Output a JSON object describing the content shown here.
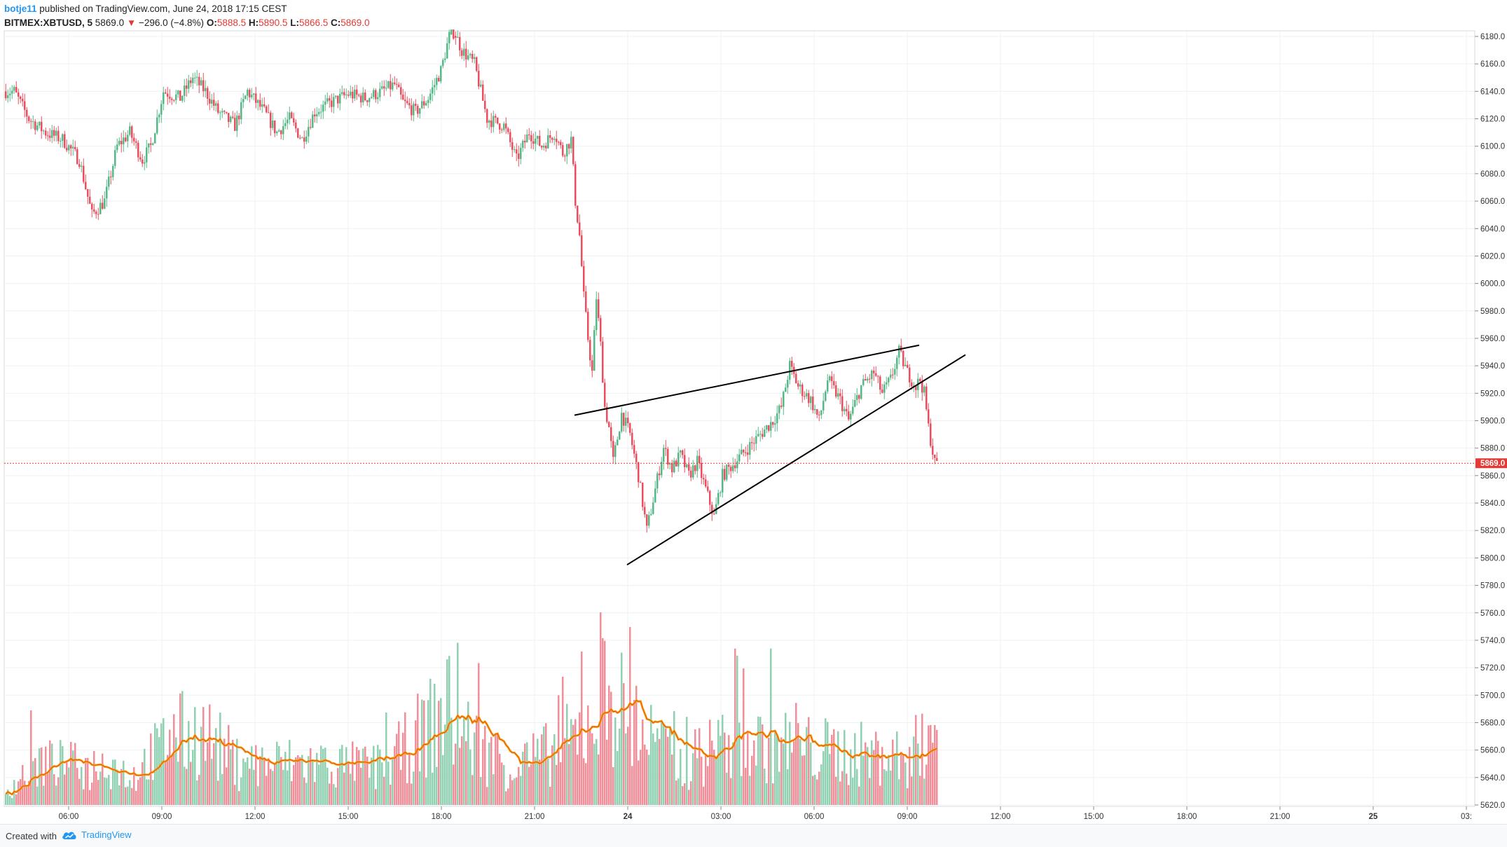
{
  "header": {
    "author": "botje11",
    "published_text": "published on TradingView.com, June 24, 2018 17:15 CEST",
    "symbol": "BITMEX:XBTUSD, 5",
    "last": "5869.0",
    "change_arrow": "▼",
    "change": "−296.0 (−4.8%)",
    "o_label": "O:",
    "o_value": "5888.5",
    "h_label": "H:",
    "h_value": "5890.5",
    "l_label": "L:",
    "l_value": "5866.5",
    "c_label": "C:",
    "c_value": "5869.0"
  },
  "footer": {
    "created_with": "Created with",
    "brand": "TradingView"
  },
  "colors": {
    "up": "#53b987",
    "down": "#eb4d5c",
    "volume_up": "#8fd1b1",
    "volume_down": "#f08f99",
    "ma_outer": "#f5a623",
    "ma_inner": "#e65100",
    "grid": "#eef0f3",
    "trendline": "#000000",
    "last_price_line": "#e53935",
    "brand": "#2196f3"
  },
  "chart_data": {
    "type": "candlestick",
    "symbol": "BITMEX:XBTUSD",
    "interval": "5",
    "ylim": [
      5615,
      6185
    ],
    "x_ticks": [
      "06:00",
      "09:00",
      "12:00",
      "15:00",
      "18:00",
      "21:00",
      "24",
      "03:00",
      "06:00",
      "09:00",
      "12:00",
      "15:00",
      "18:00",
      "21:00",
      "25",
      "03:"
    ],
    "y_ticks": [
      6180,
      6160,
      6140,
      6120,
      6100,
      6080,
      6060,
      6040,
      6020,
      6000,
      5980,
      5960,
      5940,
      5920,
      5900,
      5880,
      5860,
      5840,
      5820,
      5800,
      5780,
      5760,
      5740,
      5720,
      5700,
      5680,
      5660,
      5640,
      5620
    ],
    "y_tick_labels": [
      "6180.0",
      "6160.0",
      "6140.0",
      "6120.0",
      "6100.0",
      "6080.0",
      "6060.0",
      "6040.0",
      "6020.0",
      "6000.0",
      "5980.0",
      "5960.0",
      "5940.0",
      "5920.0",
      "5900.0",
      "5880.0",
      "5860.0",
      "5840.0",
      "5820.0",
      "5800.0",
      "5780.0",
      "5760.0",
      "5740.0",
      "5720.0",
      "5700.0",
      "5680.0",
      "5660.0",
      "5640.0",
      "5620.0"
    ],
    "last_price": 5869.0,
    "last_price_label": "5869.0",
    "price_path": [
      [
        0,
        6140
      ],
      [
        5,
        6140
      ],
      [
        12,
        6120
      ],
      [
        20,
        6110
      ],
      [
        28,
        6105
      ],
      [
        36,
        6090
      ],
      [
        42,
        6050
      ],
      [
        48,
        6060
      ],
      [
        54,
        6100
      ],
      [
        60,
        6110
      ],
      [
        66,
        6090
      ],
      [
        70,
        6100
      ],
      [
        76,
        6140
      ],
      [
        84,
        6135
      ],
      [
        90,
        6150
      ],
      [
        96,
        6140
      ],
      [
        102,
        6125
      ],
      [
        110,
        6115
      ],
      [
        116,
        6140
      ],
      [
        124,
        6125
      ],
      [
        130,
        6110
      ],
      [
        136,
        6120
      ],
      [
        142,
        6105
      ],
      [
        148,
        6125
      ],
      [
        156,
        6132
      ],
      [
        164,
        6138
      ],
      [
        172,
        6135
      ],
      [
        180,
        6140
      ],
      [
        186,
        6145
      ],
      [
        190,
        6132
      ],
      [
        196,
        6125
      ],
      [
        202,
        6135
      ],
      [
        208,
        6155
      ],
      [
        212,
        6180
      ],
      [
        214,
        6185
      ],
      [
        218,
        6170
      ],
      [
        224,
        6160
      ],
      [
        230,
        6120
      ],
      [
        238,
        6115
      ],
      [
        244,
        6090
      ],
      [
        250,
        6110
      ],
      [
        256,
        6100
      ],
      [
        262,
        6110
      ],
      [
        266,
        6095
      ],
      [
        270,
        6105
      ],
      [
        272,
        6060
      ],
      [
        274,
        6035
      ],
      [
        276,
        5990
      ],
      [
        278,
        5960
      ],
      [
        280,
        5935
      ],
      [
        282,
        5990
      ],
      [
        284,
        5955
      ],
      [
        286,
        5910
      ],
      [
        288,
        5895
      ],
      [
        290,
        5870
      ],
      [
        294,
        5905
      ],
      [
        298,
        5890
      ],
      [
        302,
        5860
      ],
      [
        306,
        5820
      ],
      [
        310,
        5850
      ],
      [
        314,
        5880
      ],
      [
        318,
        5865
      ],
      [
        322,
        5875
      ],
      [
        326,
        5860
      ],
      [
        330,
        5870
      ],
      [
        334,
        5850
      ],
      [
        338,
        5830
      ],
      [
        342,
        5860
      ],
      [
        348,
        5870
      ],
      [
        354,
        5880
      ],
      [
        360,
        5890
      ],
      [
        366,
        5900
      ],
      [
        370,
        5910
      ],
      [
        374,
        5940
      ],
      [
        378,
        5925
      ],
      [
        384,
        5915
      ],
      [
        388,
        5900
      ],
      [
        392,
        5930
      ],
      [
        398,
        5915
      ],
      [
        402,
        5900
      ],
      [
        408,
        5925
      ],
      [
        414,
        5935
      ],
      [
        418,
        5920
      ],
      [
        422,
        5930
      ],
      [
        426,
        5950
      ],
      [
        430,
        5935
      ],
      [
        434,
        5925
      ],
      [
        436,
        5930
      ],
      [
        438,
        5920
      ],
      [
        440,
        5895
      ],
      [
        443,
        5869
      ]
    ],
    "volume_peaks": [
      [
        0,
        0.15
      ],
      [
        15,
        0.45
      ],
      [
        40,
        0.4
      ],
      [
        50,
        0.45
      ],
      [
        60,
        0.3
      ],
      [
        80,
        0.75
      ],
      [
        95,
        0.75
      ],
      [
        110,
        0.45
      ],
      [
        140,
        0.45
      ],
      [
        180,
        0.4
      ],
      [
        209,
        1.0
      ],
      [
        216,
        0.8
      ],
      [
        240,
        0.4
      ],
      [
        258,
        0.55
      ],
      [
        270,
        0.7
      ],
      [
        276,
        0.85
      ],
      [
        282,
        1.0
      ],
      [
        286,
        1.3
      ],
      [
        298,
        0.85
      ],
      [
        306,
        0.75
      ],
      [
        320,
        0.4
      ],
      [
        340,
        0.65
      ],
      [
        370,
        0.65
      ],
      [
        380,
        0.6
      ],
      [
        430,
        0.5
      ],
      [
        441,
        0.85
      ]
    ],
    "trendlines": [
      {
        "name": "upper",
        "from": [
          271,
          5904
        ],
        "to": [
          435,
          5955
        ]
      },
      {
        "name": "lower",
        "from": [
          296,
          5795
        ],
        "to": [
          457,
          5948
        ]
      }
    ]
  }
}
